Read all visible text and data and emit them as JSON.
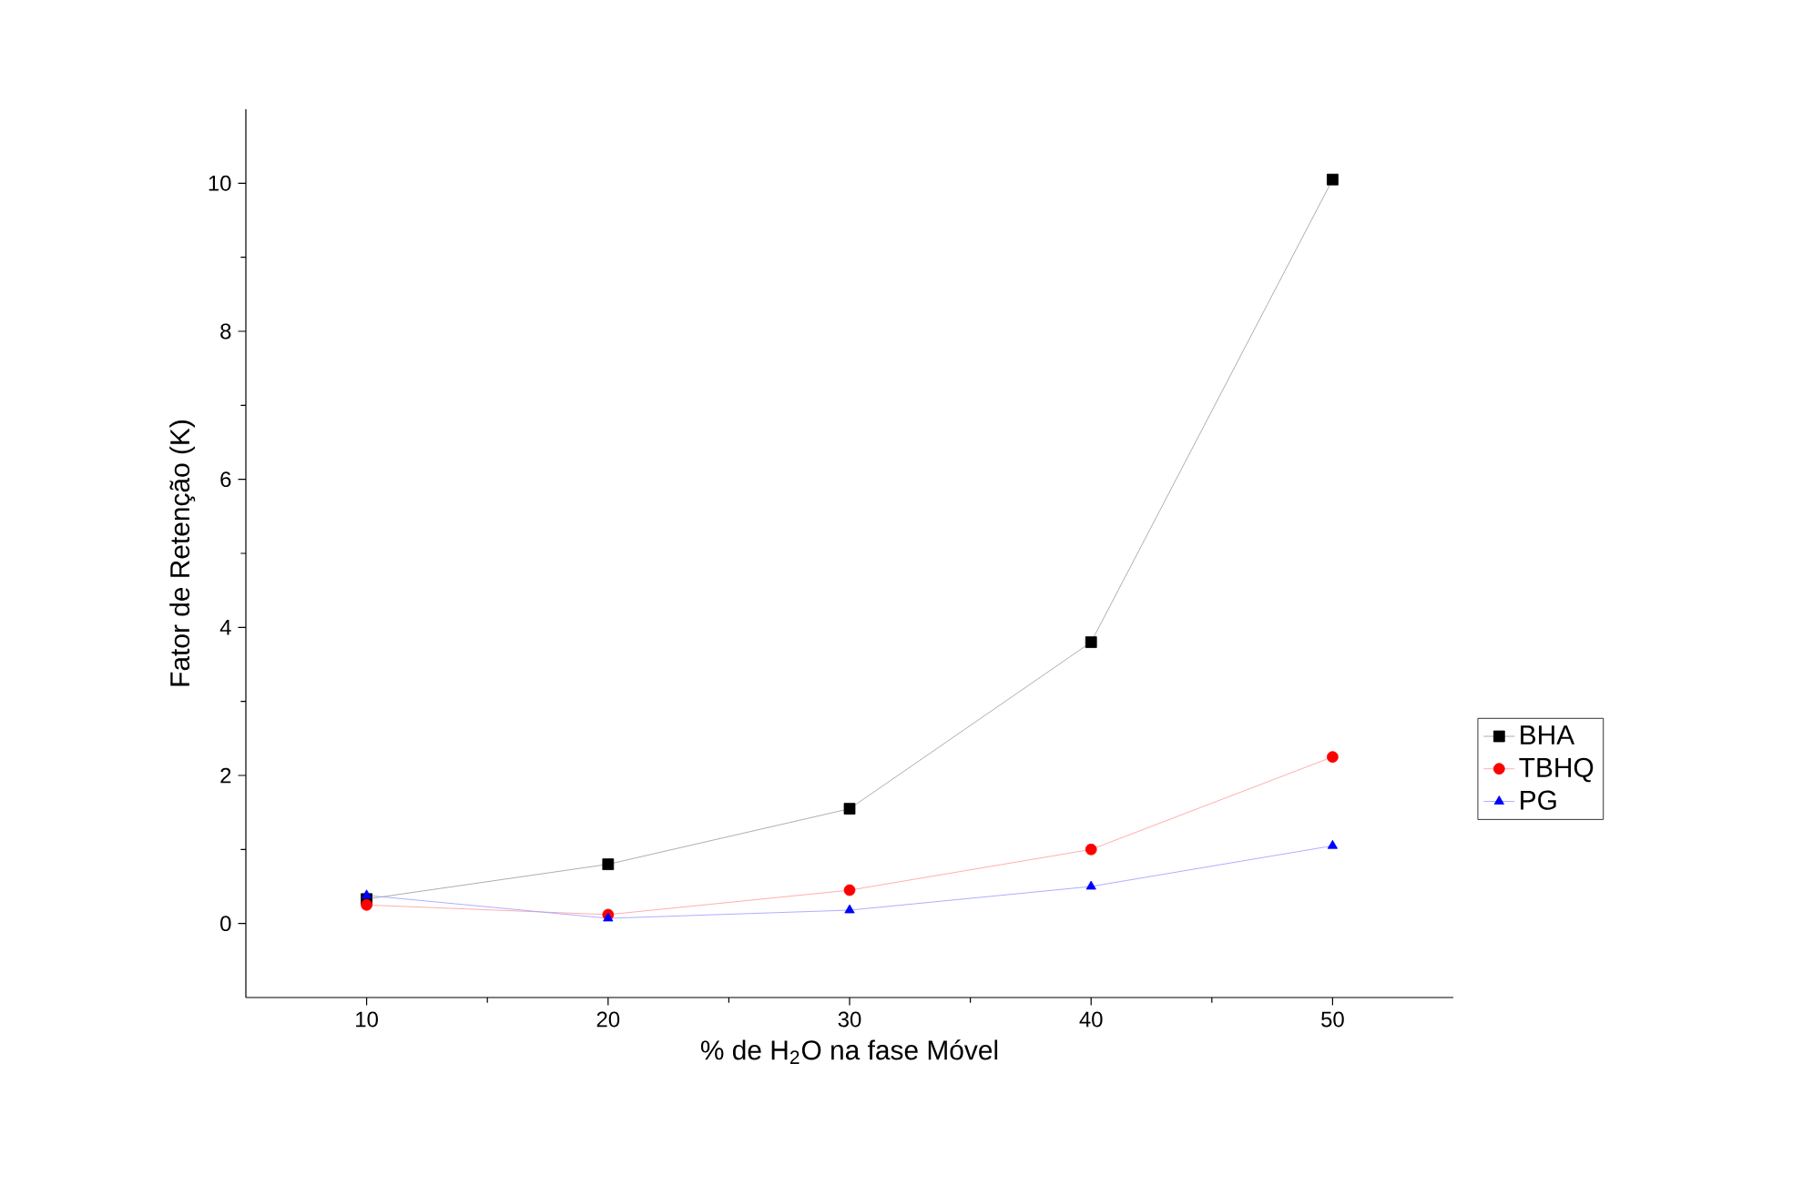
{
  "chart_data": {
    "type": "line",
    "xlabel": "% de H$_{2}$O na fase Móvel",
    "ylabel": "Fator de Retenção (K)",
    "x": [
      10,
      20,
      30,
      40,
      50
    ],
    "series": [
      {
        "name": "BHA",
        "color": "#000000",
        "marker": "square",
        "values": [
          0.33,
          0.8,
          1.55,
          3.8,
          10.05
        ]
      },
      {
        "name": "TBHQ",
        "color": "#ff0000",
        "marker": "circle",
        "values": [
          0.25,
          0.12,
          0.45,
          1.0,
          2.25
        ]
      },
      {
        "name": "PG",
        "color": "#0000ff",
        "marker": "triangle",
        "values": [
          0.38,
          0.07,
          0.18,
          0.5,
          1.05
        ]
      }
    ],
    "xlim": [
      5,
      55
    ],
    "ylim": [
      -1,
      11
    ],
    "xticks": [
      10,
      20,
      30,
      40,
      50
    ],
    "yticks": [
      0,
      2,
      4,
      6,
      8,
      10
    ],
    "grid": false,
    "legend": "right",
    "line_style": "solid"
  }
}
